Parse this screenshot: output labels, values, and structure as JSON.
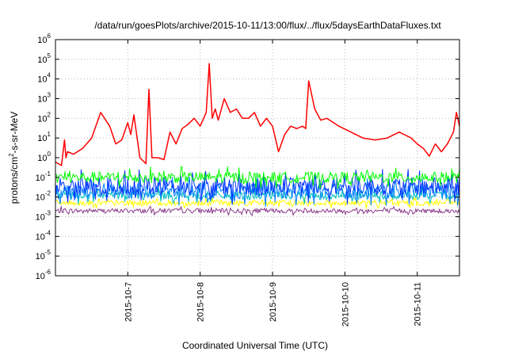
{
  "chart_data": {
    "type": "line",
    "title": "/data/run/goesPlots/archive/2015-10-11/13:00/flux/../flux/5daysEarthDataFluxes.txt",
    "xlabel": "Coordinated Universal Time (UTC)",
    "ylabel": "protons/cm²-s-sr-MeV",
    "ylabel_parts": {
      "before": "protons/cm",
      "sup": "2",
      "after": "-s-sr-MeV"
    },
    "yscale": "log",
    "ylim": [
      1e-06,
      1000000.0
    ],
    "xlim": [
      "2015-10-06T00:00",
      "2015-10-11T14:00"
    ],
    "grid": true,
    "y_ticks": [
      {
        "base": "10",
        "exp": "-6",
        "value": 1e-06
      },
      {
        "base": "10",
        "exp": "-5",
        "value": 1e-05
      },
      {
        "base": "10",
        "exp": "-4",
        "value": 0.0001
      },
      {
        "base": "10",
        "exp": "-3",
        "value": 0.001
      },
      {
        "base": "10",
        "exp": "-2",
        "value": 0.01
      },
      {
        "base": "10",
        "exp": "-1",
        "value": 0.1
      },
      {
        "base": "10",
        "exp": "0",
        "value": 1
      },
      {
        "base": "10",
        "exp": "1",
        "value": 10.0
      },
      {
        "base": "10",
        "exp": "2",
        "value": 100.0
      },
      {
        "base": "10",
        "exp": "3",
        "value": 1000.0
      },
      {
        "base": "10",
        "exp": "4",
        "value": 10000.0
      },
      {
        "base": "10",
        "exp": "5",
        "value": 100000.0
      },
      {
        "base": "10",
        "exp": "6",
        "value": 1000000.0
      }
    ],
    "x_ticks": [
      {
        "label": "2015-10-7",
        "value": "2015-10-07T00:00"
      },
      {
        "label": "2015-10-8",
        "value": "2015-10-08T00:00"
      },
      {
        "label": "2015-10-9",
        "value": "2015-10-09T00:00"
      },
      {
        "label": "2015-10-10",
        "value": "2015-10-10T00:00"
      },
      {
        "label": "2015-10-11",
        "value": "2015-10-11T00:00"
      }
    ],
    "series": [
      {
        "color": "#ff0000",
        "x": [
          "2015-10-06T00:00",
          "2015-10-06T02:00",
          "2015-10-06T03:00",
          "2015-10-06T03:30",
          "2015-10-06T04:00",
          "2015-10-06T06:00",
          "2015-10-06T09:00",
          "2015-10-06T12:00",
          "2015-10-06T15:00",
          "2015-10-06T18:00",
          "2015-10-06T20:00",
          "2015-10-06T22:00",
          "2015-10-07T00:00",
          "2015-10-07T01:00",
          "2015-10-07T02:00",
          "2015-10-07T04:00",
          "2015-10-07T06:00",
          "2015-10-07T07:00",
          "2015-10-07T08:00",
          "2015-10-07T10:00",
          "2015-10-07T12:00",
          "2015-10-07T14:00",
          "2015-10-07T16:00",
          "2015-10-07T18:00",
          "2015-10-07T20:00",
          "2015-10-07T22:00",
          "2015-10-08T00:00",
          "2015-10-08T02:00",
          "2015-10-08T03:00",
          "2015-10-08T04:00",
          "2015-10-08T05:00",
          "2015-10-08T06:00",
          "2015-10-08T08:00",
          "2015-10-08T10:00",
          "2015-10-08T12:00",
          "2015-10-08T14:00",
          "2015-10-08T16:00",
          "2015-10-08T18:00",
          "2015-10-08T20:00",
          "2015-10-08T22:00",
          "2015-10-09T00:00",
          "2015-10-09T02:00",
          "2015-10-09T04:00",
          "2015-10-09T06:00",
          "2015-10-09T08:00",
          "2015-10-09T10:00",
          "2015-10-09T11:00",
          "2015-10-09T12:00",
          "2015-10-09T14:00",
          "2015-10-09T16:00",
          "2015-10-09T18:00",
          "2015-10-09T22:00",
          "2015-10-10T02:00",
          "2015-10-10T06:00",
          "2015-10-10T10:00",
          "2015-10-10T14:00",
          "2015-10-10T18:00",
          "2015-10-10T22:00",
          "2015-10-11T00:00",
          "2015-10-11T02:00",
          "2015-10-11T04:00",
          "2015-10-11T06:00",
          "2015-10-11T08:00",
          "2015-10-11T10:00",
          "2015-10-11T11:00",
          "2015-10-11T12:00",
          "2015-10-11T13:00",
          "2015-10-11T14:00"
        ],
        "values": [
          0.6,
          0.4,
          8,
          1,
          2,
          1.5,
          3,
          10,
          200,
          40,
          5,
          8,
          60,
          15,
          150,
          1,
          0.5,
          3000,
          1,
          1,
          0.8,
          20,
          5,
          30,
          50,
          100,
          40,
          200,
          60000,
          100,
          300,
          80,
          1000,
          200,
          300,
          100,
          100,
          200,
          40,
          100,
          40,
          2,
          15,
          40,
          30,
          40,
          30,
          8000,
          300,
          80,
          100,
          40,
          20,
          10,
          8,
          10,
          20,
          10,
          5,
          3,
          1.2,
          5,
          2,
          5,
          10,
          20,
          200,
          40
        ]
      },
      {
        "color": "#00ff00",
        "baseline": 0.1,
        "amp": 0.28,
        "x": [
          "2015-10-06T00:00",
          "2015-10-11T14:00"
        ]
      },
      {
        "color": "#0033ff",
        "baseline": 0.035,
        "amp": 0.45,
        "x": [
          "2015-10-06T00:00",
          "2015-10-11T14:00"
        ]
      },
      {
        "color": "#0080ff",
        "baseline": 0.02,
        "amp": 0.4,
        "x": [
          "2015-10-06T00:00",
          "2015-10-11T14:00"
        ]
      },
      {
        "color": "#00c0c0",
        "baseline": 0.012,
        "amp": 0.22,
        "x": [
          "2015-10-06T00:00",
          "2015-10-11T14:00"
        ]
      },
      {
        "color": "#ffff00",
        "baseline": 0.005,
        "amp": 0.15,
        "x": [
          "2015-10-06T00:00",
          "2015-10-11T14:00"
        ]
      },
      {
        "color": "#8b3c8b",
        "baseline": 0.002,
        "amp": 0.12,
        "x": [
          "2015-10-06T00:00",
          "2015-10-11T14:00"
        ]
      }
    ]
  }
}
